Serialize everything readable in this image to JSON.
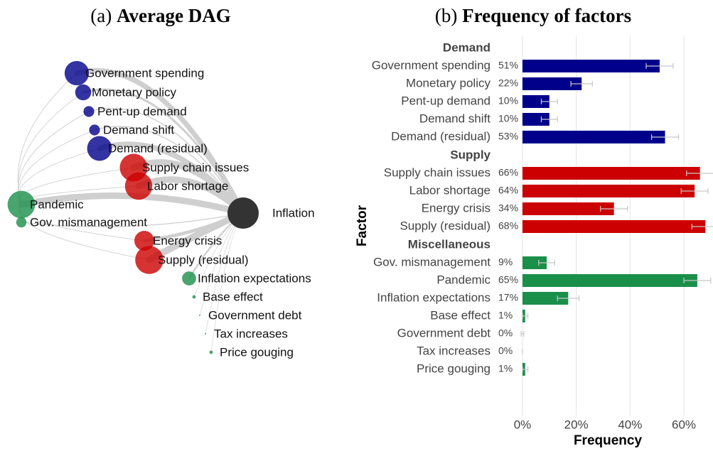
{
  "dag": {
    "panel": "(a)",
    "title": "Average DAG",
    "target": "Inflation"
  },
  "chart_data": {
    "type": "bar",
    "orientation": "horizontal",
    "panel": "(b)",
    "title": "Frequency of factors",
    "y_label": "Factor",
    "x_label": "Frequency",
    "groups": [
      {
        "name": "Demand",
        "color": "#00008b",
        "categories": [
          "Government spending",
          "Monetary policy",
          "Pent-up demand",
          "Demand shift",
          "Demand (residual)"
        ],
        "values": [
          51,
          22,
          10,
          10,
          53
        ],
        "value_labels": [
          "51%",
          "22%",
          "10%",
          "10%",
          "53%"
        ],
        "errors": [
          5,
          4,
          3,
          3,
          5
        ]
      },
      {
        "name": "Supply",
        "color": "#cc0000",
        "categories": [
          "Supply chain issues",
          "Labor shortage",
          "Energy crisis",
          "Supply (residual)"
        ],
        "values": [
          66,
          64,
          34,
          68
        ],
        "value_labels": [
          "66%",
          "64%",
          "34%",
          "68%"
        ],
        "errors": [
          5,
          5,
          5,
          5
        ]
      },
      {
        "name": "Miscellaneous",
        "color": "#1a8f4a",
        "categories": [
          "Gov. mismanagement",
          "Pandemic",
          "Inflation expectations",
          "Base effect",
          "Government debt",
          "Tax increases",
          "Price gouging"
        ],
        "values": [
          9,
          65,
          17,
          1,
          0,
          0,
          1
        ],
        "value_labels": [
          "9%",
          "65%",
          "17%",
          "1%",
          "0%",
          "0%",
          "1%"
        ],
        "errors": [
          3,
          5,
          4,
          1,
          0.5,
          0,
          1
        ]
      }
    ],
    "xlim": [
      0,
      70
    ],
    "xticks": [
      {
        "value": 0,
        "label": "0%"
      },
      {
        "value": 20,
        "label": "20%"
      },
      {
        "value": 40,
        "label": "40%"
      },
      {
        "value": 60,
        "label": "60%"
      }
    ],
    "grid": true
  }
}
